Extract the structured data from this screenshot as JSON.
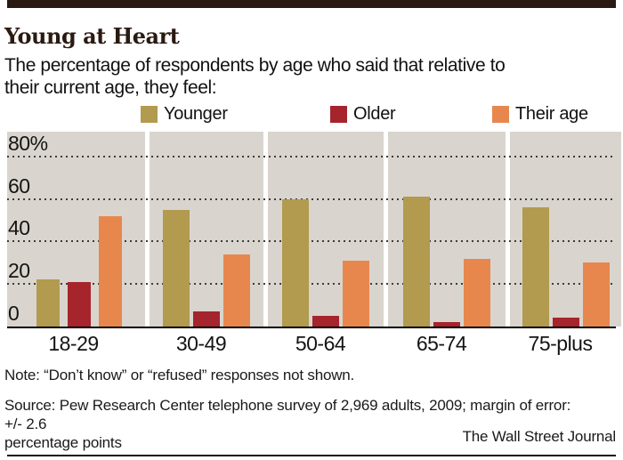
{
  "header": {
    "title": "Young at Heart",
    "subtitle_line1": "The percentage of respondents by age who said that relative to",
    "subtitle_line2": "their current age, they feel:"
  },
  "legend": [
    {
      "label": "Younger",
      "color": "#b29a4f"
    },
    {
      "label": "Older",
      "color": "#a6242c"
    },
    {
      "label": "Their age",
      "color": "#e8874d"
    }
  ],
  "chart_data": {
    "type": "bar",
    "title": "Young at Heart",
    "categories": [
      "18-29",
      "30-49",
      "50-64",
      "65-74",
      "75-plus"
    ],
    "series": [
      {
        "name": "Younger",
        "color": "#b29a4f",
        "values": [
          22,
          55,
          60,
          61,
          56
        ]
      },
      {
        "name": "Older",
        "color": "#a6242c",
        "values": [
          21,
          7,
          5,
          2,
          4
        ]
      },
      {
        "name": "Their age",
        "color": "#e8874d",
        "values": [
          52,
          34,
          31,
          32,
          30
        ]
      }
    ],
    "xlabel": "",
    "ylabel": "",
    "y_ticks": [
      {
        "label": "80%",
        "value": 80
      },
      {
        "label": "60",
        "value": 60
      },
      {
        "label": "40",
        "value": 40
      },
      {
        "label": "20",
        "value": 20
      },
      {
        "label": "0",
        "value": 0
      }
    ],
    "gridline_values": [
      80,
      60,
      40,
      20
    ],
    "ylim": [
      0,
      91
    ],
    "grid": "dotted-horizontal",
    "legend_position": "top",
    "plot_background": "#d9d5ce"
  },
  "footer": {
    "note": "Note: “Don’t know” or “refused” responses not shown.",
    "source_line1": "Source: Pew Research Center telephone survey of 2,969 adults, 2009; margin of error: +/- 2.6",
    "source_line2": "percentage points",
    "credit": "The Wall Street Journal"
  }
}
